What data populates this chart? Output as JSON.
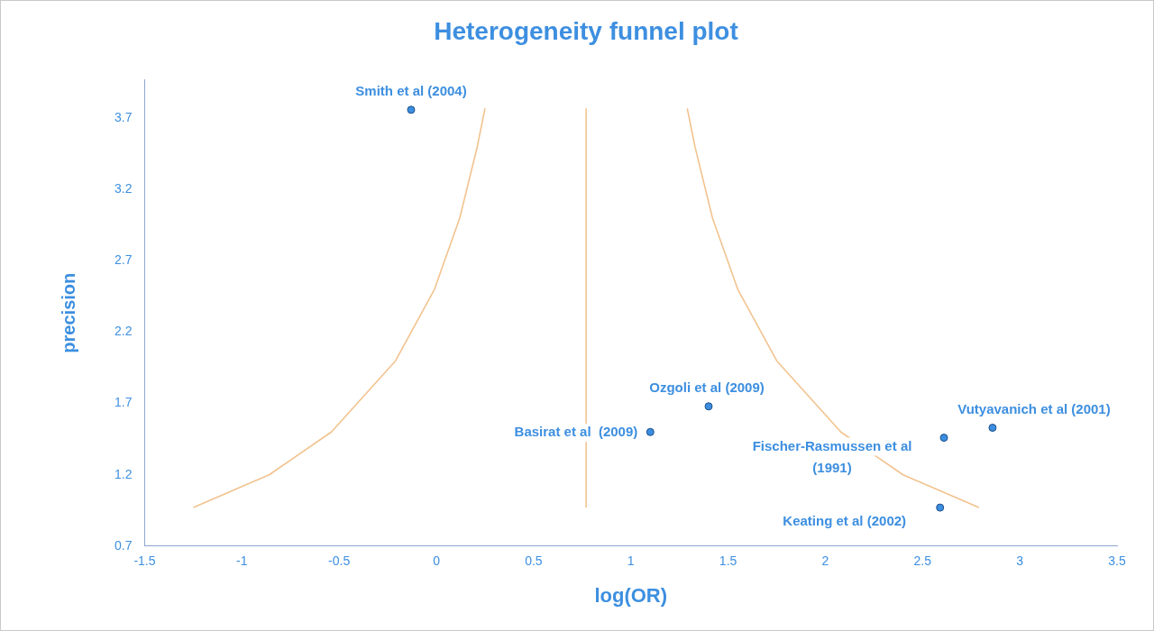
{
  "chart_data": {
    "type": "scatter",
    "title": "Heterogeneity funnel plot",
    "xlabel": "log(OR)",
    "ylabel": "precision",
    "xlim": [
      -1.5,
      3.5
    ],
    "xticks": [
      -1.5,
      -1,
      -0.5,
      0,
      0.5,
      1,
      1.5,
      2,
      2.5,
      3,
      3.5
    ],
    "ylim": [
      0.7,
      3.97
    ],
    "yticks": [
      0.7,
      1.2,
      1.7,
      2.2,
      2.7,
      3.2,
      3.7
    ],
    "series": [
      {
        "type": "scatter",
        "marker": "circle",
        "color": "#3b8ee0",
        "x": [
          -0.13,
          1.4,
          1.1,
          2.86,
          2.61,
          2.59
        ],
        "values": [
          3.76,
          1.68,
          1.5,
          1.53,
          1.46,
          0.97
        ]
      },
      {
        "type": "line",
        "color": "#f2c38f",
        "x": [
          -1.25,
          -0.86,
          -0.54,
          -0.21,
          -0.01,
          0.12,
          0.21,
          0.25
        ],
        "values": [
          0.97,
          1.2,
          1.5,
          2,
          2.5,
          3,
          3.5,
          3.77
        ]
      },
      {
        "type": "line",
        "color": "#f2c38f",
        "x": [
          2.79,
          2.4,
          2.08,
          1.75,
          1.55,
          1.42,
          1.33,
          1.29
        ],
        "values": [
          0.97,
          1.2,
          1.5,
          2,
          2.5,
          3,
          3.5,
          3.77
        ]
      },
      {
        "type": "line",
        "color": "#f2c38f",
        "x": [
          0.77,
          0.77
        ],
        "values": [
          0.97,
          3.77
        ]
      }
    ],
    "annotations": [
      {
        "text": "Smith et al (2004)",
        "x": -0.13,
        "y": 3.76
      },
      {
        "text": "Ozgoli et al (2009)",
        "x": 1.4,
        "y": 1.68
      },
      {
        "text": "Basirat et al  (2009)",
        "x": 1.1,
        "y": 1.5
      },
      {
        "text": "Vutyavanich et al (2001)",
        "x": 2.86,
        "y": 1.53
      },
      {
        "text": "Fischer-Rasmussen et al (1991)",
        "x": 2.61,
        "y": 1.46
      },
      {
        "text": "Keating et al (2002)",
        "x": 2.59,
        "y": 0.97
      }
    ]
  }
}
